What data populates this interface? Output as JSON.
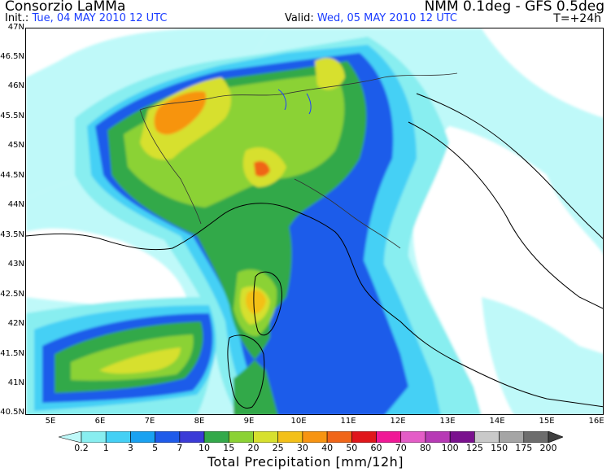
{
  "header": {
    "title_left": "Consorzio LaMMa",
    "title_right": "NMM 0.1deg - GFS 0.5deg",
    "init_label": "Init.:",
    "init_value": "Tue, 04 MAY 2010   12 UTC",
    "valid_label": "Valid:",
    "valid_value": "Wed, 05 MAY 2010   12 UTC",
    "lead_time": "T=+24h"
  },
  "axes": {
    "lat_labels": [
      "47N",
      "46.5N",
      "46N",
      "45.5N",
      "45N",
      "44.5N",
      "44N",
      "43.5N",
      "43N",
      "42.5N",
      "42N",
      "41.5N",
      "41N",
      "40.5N"
    ],
    "lon_labels": [
      "5E",
      "6E",
      "7E",
      "8E",
      "9E",
      "10E",
      "11E",
      "12E",
      "13E",
      "14E",
      "15E",
      "16E"
    ]
  },
  "colorbar": {
    "title": "Total Precipitation [mm/12h]",
    "labels": [
      "0.2",
      "1",
      "3",
      "5",
      "7",
      "10",
      "15",
      "20",
      "25",
      "30",
      "40",
      "50",
      "60",
      "70",
      "80",
      "100",
      "125",
      "150",
      "175",
      "200"
    ],
    "colors": [
      "#bff9f9",
      "#88eef0",
      "#44d0f5",
      "#1aa2f1",
      "#1f5bea",
      "#3b3bd7",
      "#33a94a",
      "#8bd234",
      "#d7e02e",
      "#f3c018",
      "#f79411",
      "#f06518",
      "#e0161b",
      "#f01896",
      "#e45dc7",
      "#b73ab5",
      "#7a118e",
      "#c9c9c9",
      "#a5a5a5",
      "#6d6d6d",
      "#3f3f3f"
    ]
  }
}
